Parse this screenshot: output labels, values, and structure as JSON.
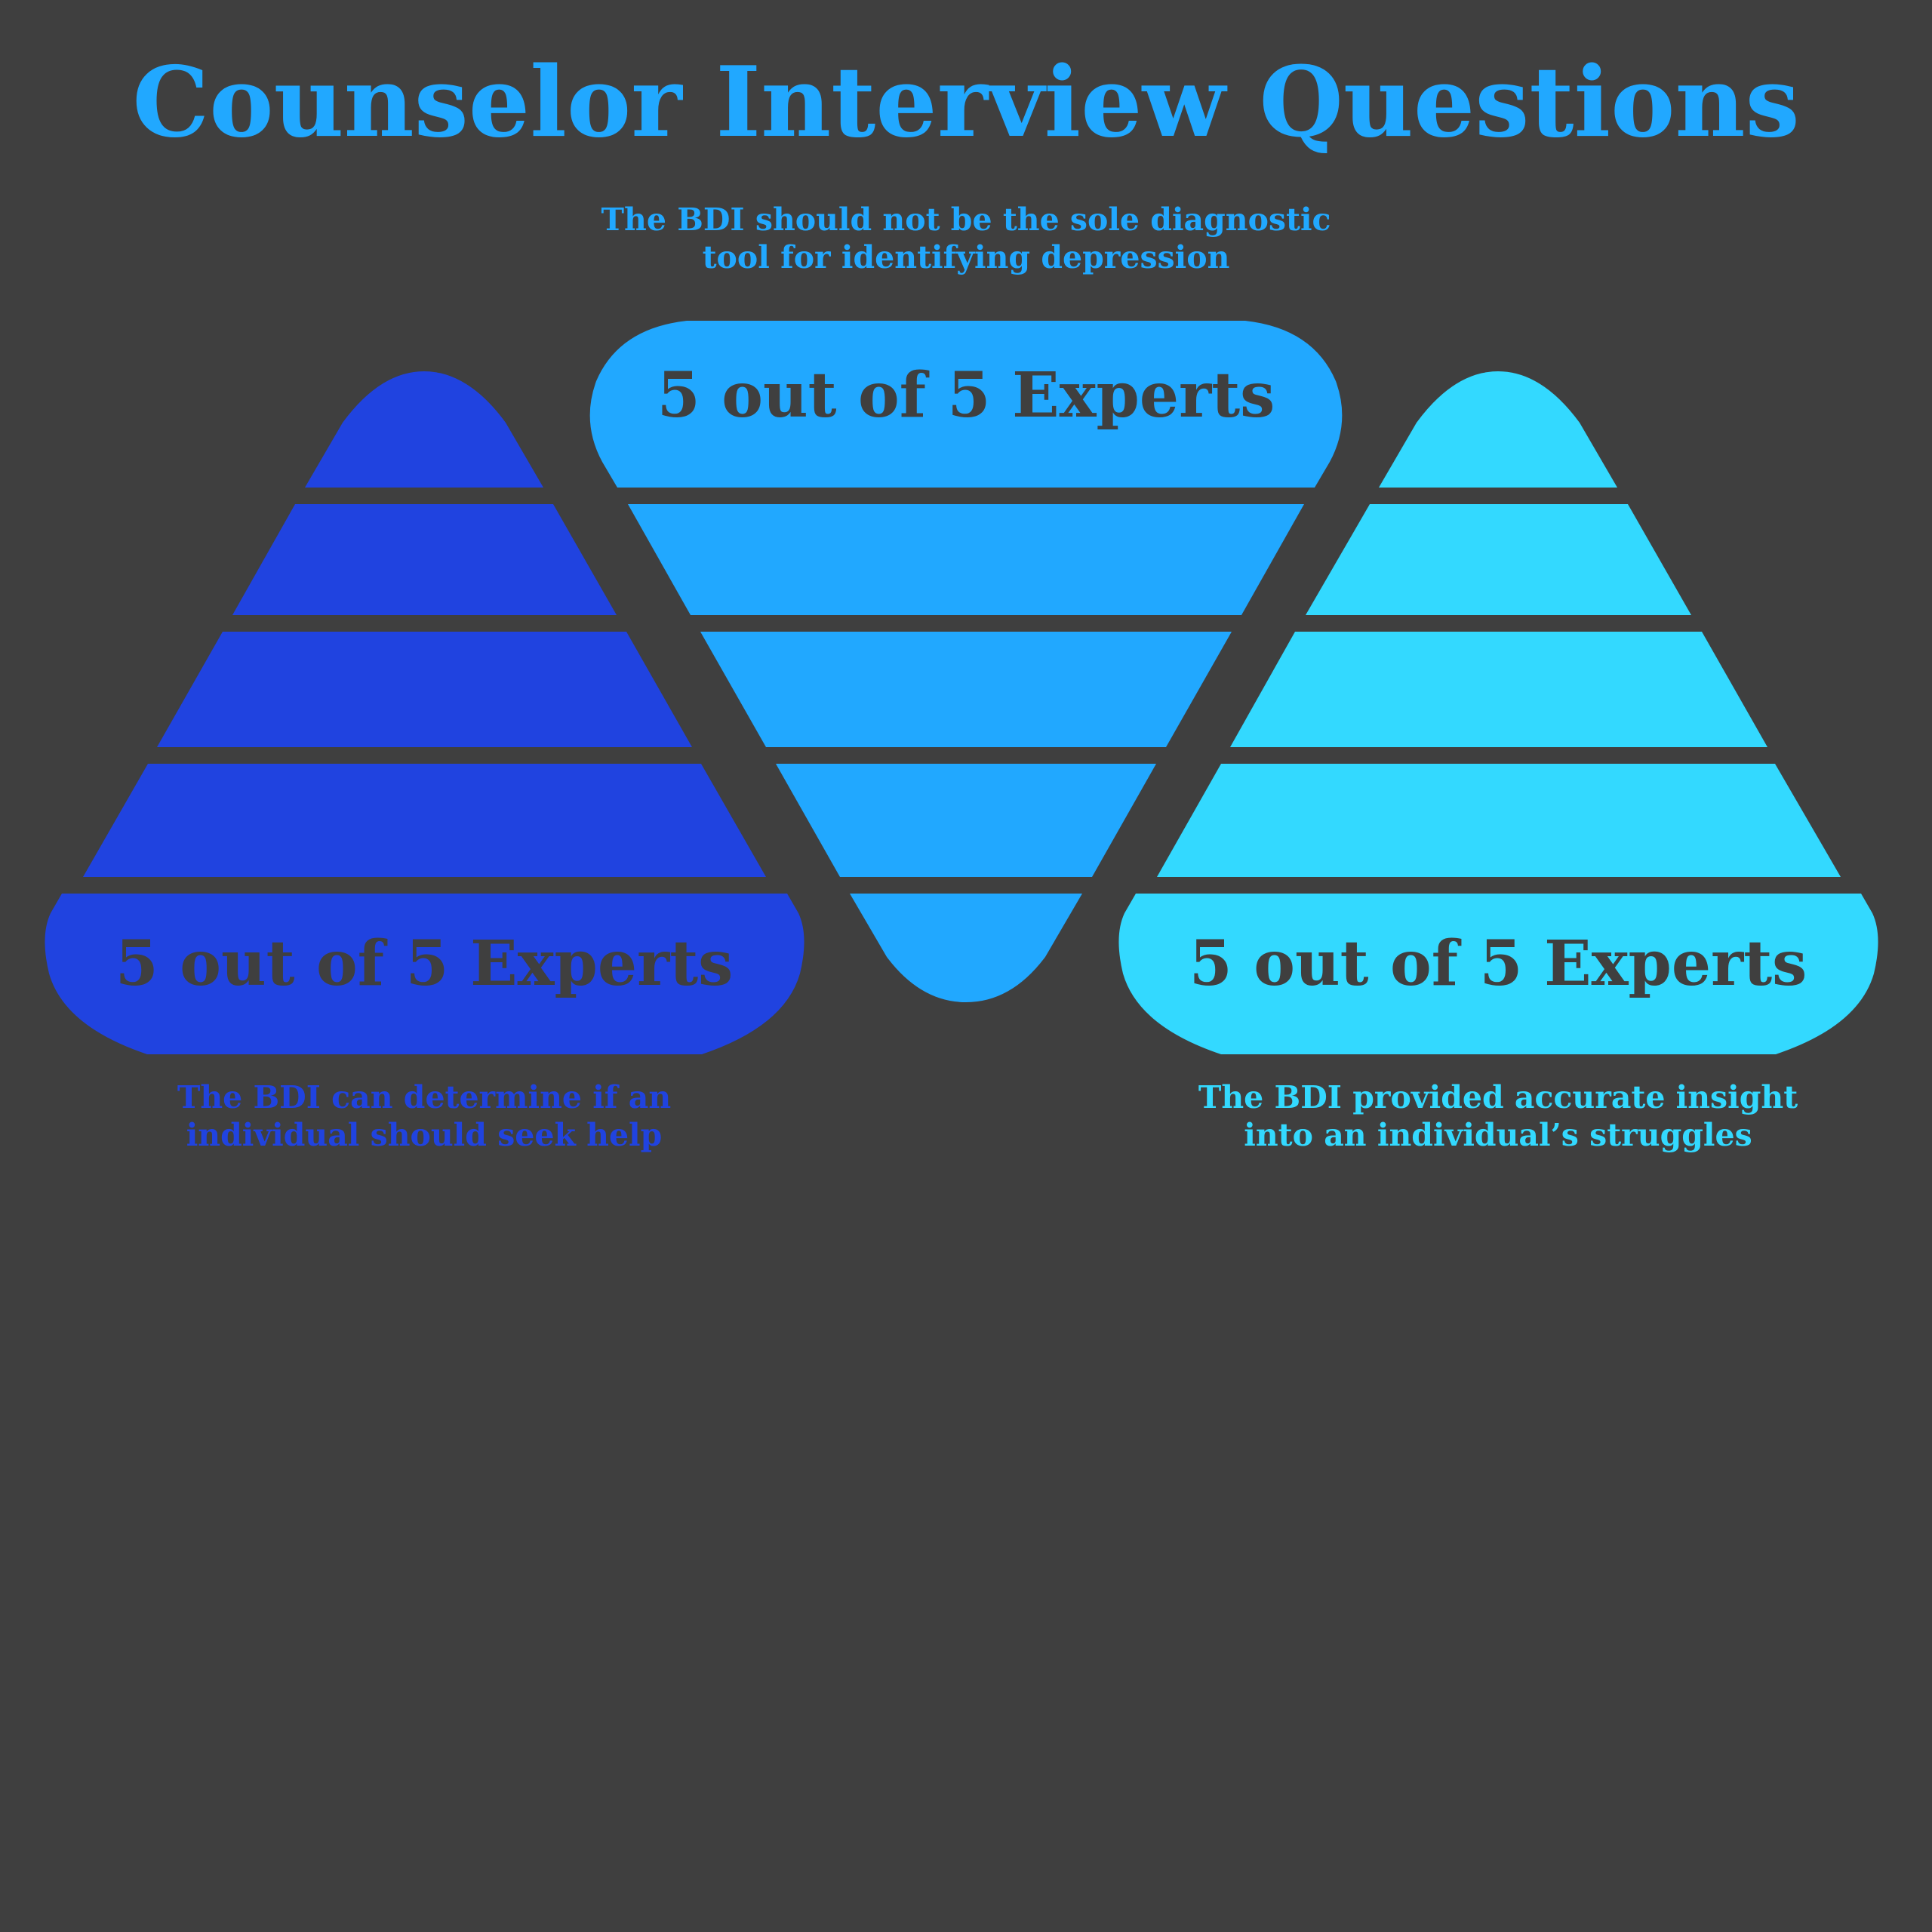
{
  "title": "Counselor Interview Questions",
  "colors": {
    "background": "#3f3f3f",
    "title": "#21a8ff",
    "left": "#2043e0",
    "center": "#21a8ff",
    "right": "#33d9ff",
    "label_text": "#3f3f3f"
  },
  "items": [
    {
      "id": "left",
      "orientation": "up",
      "stat": "5 out of 5 Experts",
      "caption_lines": [
        "The BDI can determine if an",
        "individual should seek help"
      ]
    },
    {
      "id": "center",
      "orientation": "down",
      "stat": "5 out of 5 Experts",
      "caption_lines": [
        "The BDI should not be the sole diagnostic",
        "tool for identifying depression"
      ]
    },
    {
      "id": "right",
      "orientation": "up",
      "stat": "5 out of 5 Experts",
      "caption_lines": [
        "The BDI provided accurate insight",
        "into an individual’s struggles"
      ]
    }
  ]
}
